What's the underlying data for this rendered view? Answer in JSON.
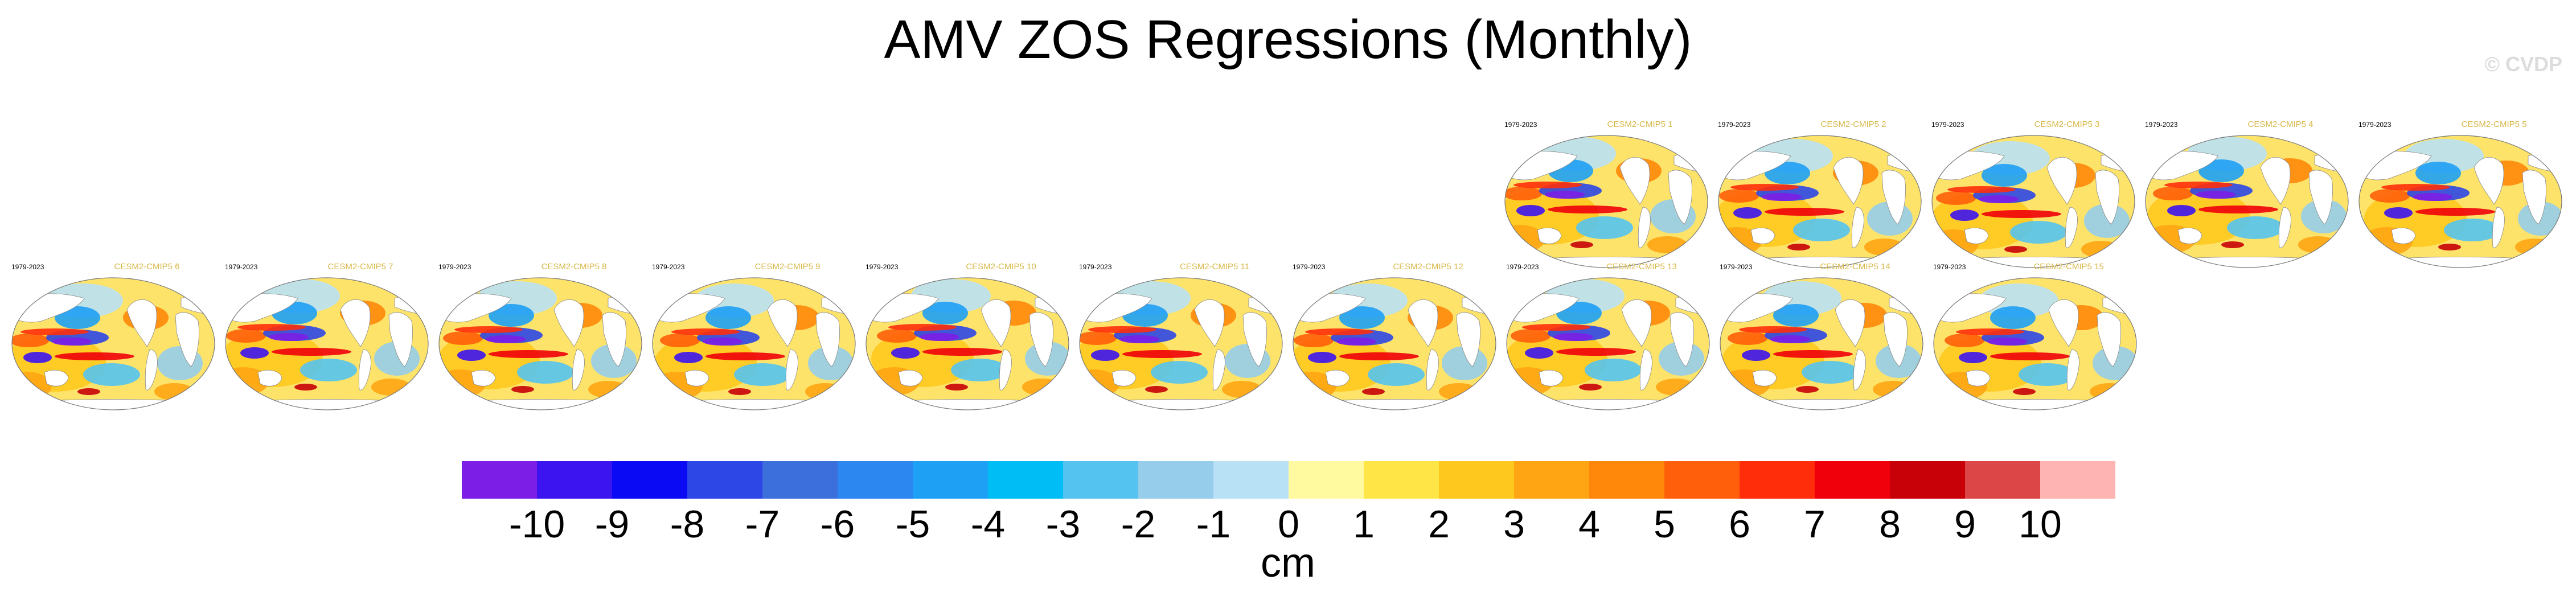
{
  "title": "AMV ZOS Regressions (Monthly)",
  "watermark": "© CVDP",
  "panels": [
    {
      "period": "1979-2023",
      "member": "CESM2-CMIP5 1"
    },
    {
      "period": "1979-2023",
      "member": "CESM2-CMIP5 2"
    },
    {
      "period": "1979-2023",
      "member": "CESM2-CMIP5 3"
    },
    {
      "period": "1979-2023",
      "member": "CESM2-CMIP5 4"
    },
    {
      "period": "1979-2023",
      "member": "CESM2-CMIP5 5"
    },
    {
      "period": "1979-2023",
      "member": "CESM2-CMIP5 6"
    },
    {
      "period": "1979-2023",
      "member": "CESM2-CMIP5 7"
    },
    {
      "period": "1979-2023",
      "member": "CESM2-CMIP5 8"
    },
    {
      "period": "1979-2023",
      "member": "CESM2-CMIP5 9"
    },
    {
      "period": "1979-2023",
      "member": "CESM2-CMIP5 10"
    },
    {
      "period": "1979-2023",
      "member": "CESM2-CMIP5 11"
    },
    {
      "period": "1979-2023",
      "member": "CESM2-CMIP5 12"
    },
    {
      "period": "1979-2023",
      "member": "CESM2-CMIP5 13"
    },
    {
      "period": "1979-2023",
      "member": "CESM2-CMIP5 14"
    },
    {
      "period": "1979-2023",
      "member": "CESM2-CMIP5 15"
    }
  ],
  "colorbar": {
    "units": "cm",
    "colors": [
      "#7d1ee6",
      "#3c14f0",
      "#0a0af5",
      "#2d46e6",
      "#3c6edc",
      "#2d87f0",
      "#1ea0f5",
      "#00bef5",
      "#55c3f0",
      "#96cdeb",
      "#b9e1f5",
      "#fffaa0",
      "#ffe646",
      "#ffc81e",
      "#ffa514",
      "#ff870a",
      "#ff5f0a",
      "#ff2d0a",
      "#f0000a",
      "#c80008",
      "#dc4646",
      "#ffb4b4"
    ],
    "ticks": [
      "-10",
      "-9",
      "-8",
      "-7",
      "-6",
      "-5",
      "-4",
      "-3",
      "-2",
      "-1",
      "0",
      "1",
      "2",
      "3",
      "4",
      "5",
      "6",
      "7",
      "8",
      "9",
      "10"
    ]
  }
}
